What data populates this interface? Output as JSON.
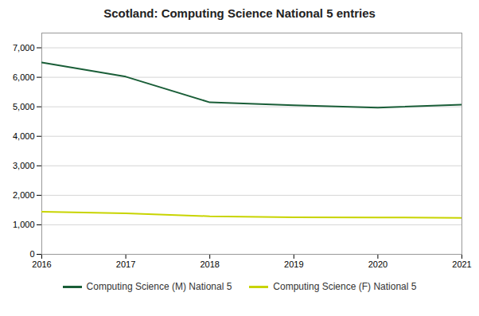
{
  "chart_data": {
    "type": "line",
    "title": "Scotland:  Computing Science National 5 entries",
    "x": [
      2016,
      2017,
      2018,
      2019,
      2020,
      2021
    ],
    "series": [
      {
        "name": "Computing Science (M) National 5",
        "color": "#1a5e38",
        "values": [
          6500,
          6020,
          5150,
          5050,
          4970,
          5070
        ]
      },
      {
        "name": "Computing Science (F) National 5",
        "color": "#c8d400",
        "values": [
          1440,
          1390,
          1290,
          1255,
          1250,
          1235
        ]
      }
    ],
    "xlim": [
      2016,
      2021
    ],
    "xticks": [
      2016,
      2017,
      2018,
      2019,
      2020,
      2021
    ],
    "ylim": [
      0,
      7500
    ],
    "yticks": [
      0,
      {
        "value": 1000,
        "label": "1,000"
      },
      {
        "value": 2000,
        "label": "2,000"
      },
      {
        "value": 3000,
        "label": "3,000"
      },
      {
        "value": 4000,
        "label": "4,000"
      },
      {
        "value": 5000,
        "label": "5,000"
      },
      {
        "value": 6000,
        "label": "6,000"
      },
      {
        "value": 7000,
        "label": "7,000"
      }
    ],
    "grid": true,
    "legend": "bottom"
  }
}
